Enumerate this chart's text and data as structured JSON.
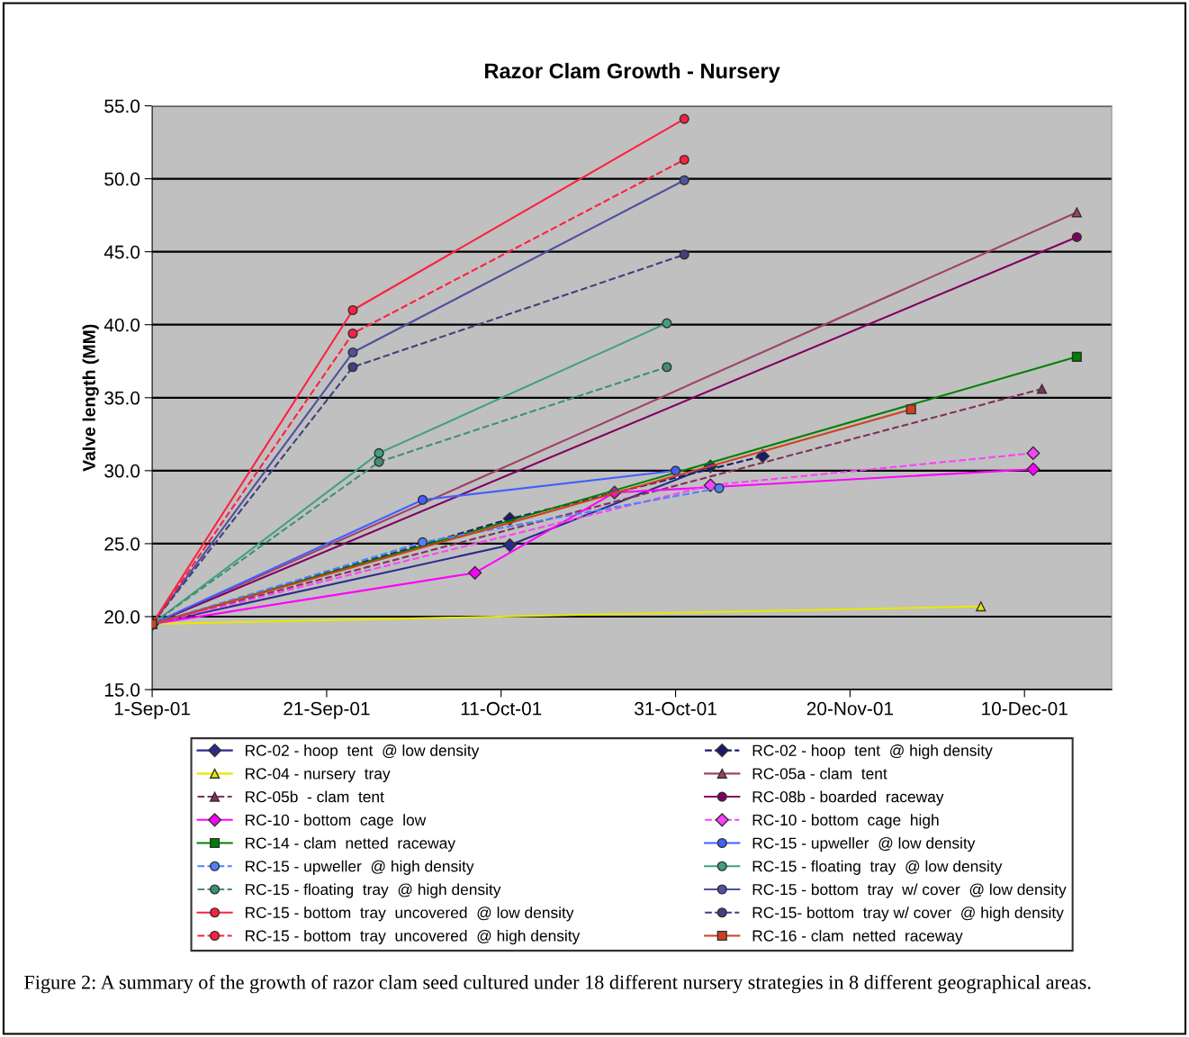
{
  "chart_data": {
    "type": "line",
    "title": "Razor Clam Growth - Nursery",
    "ylabel": "Valve length (MM)",
    "xlim": [
      "2001-09-01",
      "2001-12-20"
    ],
    "xticks": [
      {
        "value": "2001-09-01",
        "label": "1-Sep-01"
      },
      {
        "value": "2001-09-21",
        "label": "21-Sep-01"
      },
      {
        "value": "2001-10-11",
        "label": "11-Oct-01"
      },
      {
        "value": "2001-10-31",
        "label": "31-Oct-01"
      },
      {
        "value": "2001-11-20",
        "label": "20-Nov-01"
      },
      {
        "value": "2001-12-10",
        "label": "10-Dec-01"
      }
    ],
    "ylim": [
      15,
      55
    ],
    "yticks": [
      {
        "value": 15,
        "label": "15.0"
      },
      {
        "value": 20,
        "label": "20.0"
      },
      {
        "value": 25,
        "label": "25.0"
      },
      {
        "value": 30,
        "label": "30.0"
      },
      {
        "value": 35,
        "label": "35.0"
      },
      {
        "value": 40,
        "label": "40.0"
      },
      {
        "value": 45,
        "label": "45.0"
      },
      {
        "value": 50,
        "label": "50.0"
      },
      {
        "value": 55,
        "label": "55.0"
      }
    ],
    "grid": "y",
    "legend": "bottom",
    "annotations": [
      "Figure 2: A summary of the growth of razor clam seed cultured under 18 different nursery strategies in 8 different geographical areas."
    ],
    "series": [
      {
        "name": "RC-02 - hoop  tent  @ low density",
        "color": "#2b2b8c",
        "marker": "diamond",
        "line_style": "solid",
        "x": [
          "2001-09-01",
          "2001-10-12",
          "2001-11-04"
        ],
        "values": [
          19.5,
          24.9,
          30.3
        ]
      },
      {
        "name": "RC-02 - hoop  tent  @ high density",
        "color": "#1a1a6e",
        "marker": "diamond",
        "line_style": "dashed",
        "x": [
          "2001-09-01",
          "2001-10-12",
          "2001-11-10"
        ],
        "values": [
          19.5,
          26.7,
          31.0
        ]
      },
      {
        "name": "RC-04 - nursery  tray",
        "color": "#e8e800",
        "marker": "triangle",
        "line_style": "solid",
        "x": [
          "2001-09-01",
          "2001-12-05"
        ],
        "values": [
          19.5,
          20.7
        ]
      },
      {
        "name": "RC-05a - clam  tent",
        "color": "#a0406a",
        "marker": "triangle",
        "line_style": "solid",
        "x": [
          "2001-09-01",
          "2001-12-16"
        ],
        "values": [
          19.5,
          47.7
        ]
      },
      {
        "name": "RC-05b  - clam  tent",
        "color": "#803060",
        "marker": "triangle",
        "line_style": "dashed",
        "x": [
          "2001-09-01",
          "2001-12-12"
        ],
        "values": [
          19.5,
          35.6
        ]
      },
      {
        "name": "RC-08b - boarded  raceway",
        "color": "#800060",
        "marker": "circle",
        "line_style": "solid",
        "x": [
          "2001-09-01",
          "2001-12-16"
        ],
        "values": [
          19.5,
          46.0
        ]
      },
      {
        "name": "RC-10 - bottom  cage  low",
        "color": "#ff00ff",
        "marker": "diamond",
        "line_style": "solid",
        "x": [
          "2001-09-01",
          "2001-10-08",
          "2001-10-24",
          "2001-12-11"
        ],
        "values": [
          19.5,
          23.0,
          28.5,
          30.1
        ]
      },
      {
        "name": "RC-10 - bottom  cage  high",
        "color": "#ff40ff",
        "marker": "diamond",
        "line_style": "dashed",
        "x": [
          "2001-09-01",
          "2001-11-04",
          "2001-12-11"
        ],
        "values": [
          19.5,
          29.0,
          31.2
        ]
      },
      {
        "name": "RC-14 - clam  netted  raceway",
        "color": "#008000",
        "marker": "square",
        "line_style": "solid",
        "x": [
          "2001-09-01",
          "2001-12-16"
        ],
        "values": [
          19.5,
          37.8
        ]
      },
      {
        "name": "RC-15 - upweller  @ low density",
        "color": "#4060ff",
        "marker": "circle",
        "line_style": "solid",
        "x": [
          "2001-09-01",
          "2001-10-02",
          "2001-10-31"
        ],
        "values": [
          19.5,
          28.0,
          30.0
        ]
      },
      {
        "name": "RC-15 - upweller  @ high density",
        "color": "#5080ff",
        "marker": "circle",
        "line_style": "dashed",
        "x": [
          "2001-09-01",
          "2001-10-02",
          "2001-11-05"
        ],
        "values": [
          19.5,
          25.1,
          28.8
        ]
      },
      {
        "name": "RC-15 - floating  tray  @ low density",
        "color": "#40a080",
        "marker": "circle",
        "line_style": "solid",
        "x": [
          "2001-09-01",
          "2001-09-27",
          "2001-10-30"
        ],
        "values": [
          19.5,
          31.2,
          40.1
        ]
      },
      {
        "name": "RC-15 - floating  tray  @ high density",
        "color": "#409070",
        "marker": "circle",
        "line_style": "dashed",
        "x": [
          "2001-09-01",
          "2001-09-27",
          "2001-10-30"
        ],
        "values": [
          19.5,
          30.6,
          37.1
        ]
      },
      {
        "name": "RC-15 - bottom  tray  w/ cover  @ low density",
        "color": "#5050a0",
        "marker": "circle",
        "line_style": "solid",
        "x": [
          "2001-09-01",
          "2001-09-24",
          "2001-11-01"
        ],
        "values": [
          19.5,
          38.1,
          49.9
        ]
      },
      {
        "name": "RC-15 - bottom  tray  uncovered  @ low density",
        "color": "#ff2040",
        "marker": "circle",
        "line_style": "solid",
        "x": [
          "2001-09-01",
          "2001-09-24",
          "2001-11-01"
        ],
        "values": [
          19.5,
          41.0,
          54.1
        ]
      },
      {
        "name": "RC-15- bottom  tray w/ cover  @ high density",
        "color": "#404080",
        "marker": "circle",
        "line_style": "dashed",
        "x": [
          "2001-09-01",
          "2001-09-24",
          "2001-11-01"
        ],
        "values": [
          19.5,
          37.1,
          44.8
        ]
      },
      {
        "name": "RC-15 - bottom  tray  uncovered  @ high density",
        "color": "#ff2040",
        "marker": "circle",
        "line_style": "dashed",
        "x": [
          "2001-09-01",
          "2001-09-24",
          "2001-11-01"
        ],
        "values": [
          19.5,
          39.4,
          51.3
        ]
      },
      {
        "name": "RC-16 - clam  netted  raceway",
        "color": "#d04020",
        "marker": "square",
        "line_style": "solid",
        "x": [
          "2001-09-01",
          "2001-11-27"
        ],
        "values": [
          19.5,
          34.2
        ]
      }
    ]
  }
}
